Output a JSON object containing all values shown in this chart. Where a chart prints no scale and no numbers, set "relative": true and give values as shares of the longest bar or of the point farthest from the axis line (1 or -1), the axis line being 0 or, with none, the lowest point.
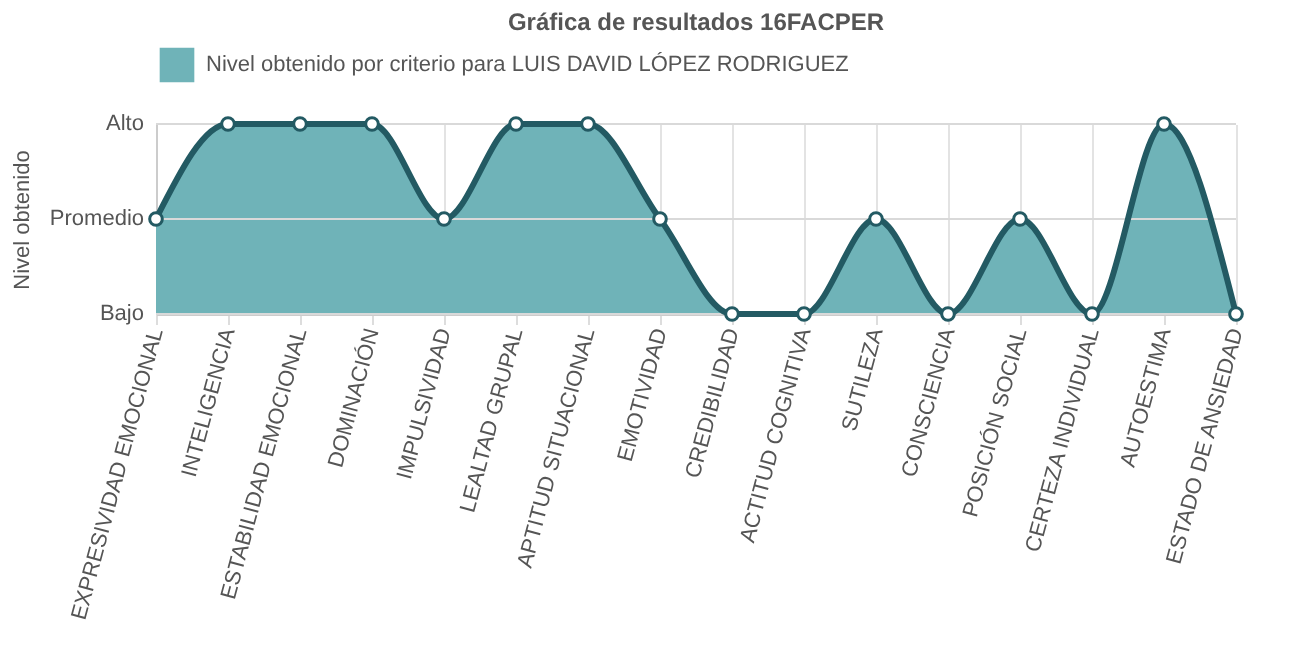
{
  "chart_data": {
    "type": "area",
    "title": "Gráfica de resultados 16FACPER",
    "ylabel": "Nivel obtenido",
    "categories": [
      "EXPRESIVIDAD EMOCIONAL",
      "INTELIGENCIA",
      "ESTABILIDAD EMOCIONAL",
      "DOMINACIÓN",
      "IMPULSIVIDAD",
      "LEALTAD GRUPAL",
      "APTITUD SITUACIONAL",
      "EMOTIVIDAD",
      "CREDIBILIDAD",
      "ACTITUD COGNITIVA",
      "SUTILEZA",
      "CONSCIENCIA",
      "POSICIÓN SOCIAL",
      "CERTEZA INDIVIDUAL",
      "AUTOESTIMA",
      "ESTADO DE ANSIEDAD"
    ],
    "series": [
      {
        "name": "Nivel obtenido por criterio para LUIS DAVID LÓPEZ RODRIGUEZ",
        "color": "#6fb3b8",
        "values": [
          0.5,
          1,
          1,
          1,
          0.5,
          1,
          1,
          0.5,
          0,
          0,
          0.5,
          0,
          0.5,
          0,
          1,
          0
        ]
      }
    ],
    "relative": true,
    "ref_lines": [
      {
        "axis": "y",
        "value": 0,
        "label": "Bajo",
        "color": "#d9d9d9"
      },
      {
        "axis": "y",
        "value": 0.5,
        "label": "Promedio",
        "color": "#d9d9d9"
      },
      {
        "axis": "y",
        "value": 1,
        "label": "Alto",
        "color": "#d9d9d9"
      }
    ],
    "grid": "x",
    "legend": "top",
    "marker": "circle",
    "line_style": "solid"
  }
}
